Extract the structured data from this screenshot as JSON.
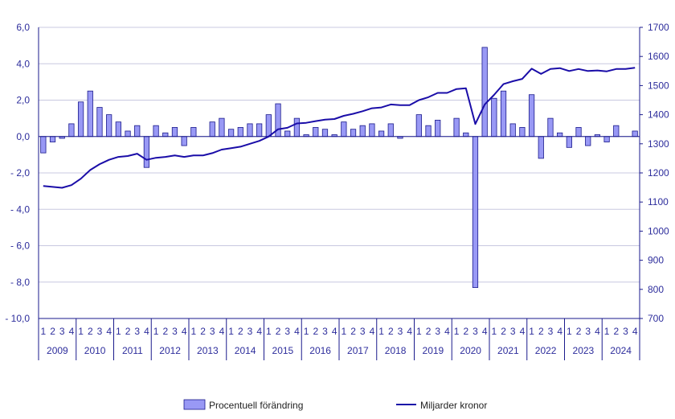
{
  "chart_data": {
    "type": "bar+line",
    "colors": {
      "bar_fill": "#9999f5",
      "bar_stroke": "#1a1a8c",
      "line": "#1a0da8",
      "axis_text": "#2d2d9c",
      "grid": "#c8c8e0",
      "axis_line": "#1a1a8c"
    },
    "left_axis": {
      "ylim": [
        -10,
        6
      ],
      "ticks": [
        6,
        4,
        2,
        0,
        -2,
        -4,
        -6,
        -8,
        -10
      ],
      "tick_labels": [
        "6,0",
        "4,0",
        "2,0",
        "0,0",
        "- 2,0",
        "- 4,0",
        "- 6,0",
        "- 8,0",
        "- 10,0"
      ]
    },
    "right_axis": {
      "ylim": [
        700,
        1700
      ],
      "ticks": [
        1700,
        1600,
        1500,
        1400,
        1300,
        1200,
        1100,
        1000,
        900,
        800,
        700
      ],
      "tick_labels": [
        "1700",
        "1600",
        "1500",
        "1400",
        "1300",
        "1200",
        "1100",
        "1000",
        "900",
        "800",
        "700"
      ]
    },
    "years": [
      "2009",
      "2010",
      "2011",
      "2012",
      "2013",
      "2014",
      "2015",
      "2016",
      "2017",
      "2018",
      "2019",
      "2020",
      "2021",
      "2022",
      "2023",
      "2024"
    ],
    "quarter_labels": [
      "1",
      "2",
      "3",
      "4"
    ],
    "series": [
      {
        "name": "Procentuell förändring",
        "kind": "bar",
        "axis": "left",
        "values": [
          -0.9,
          -0.3,
          -0.1,
          0.7,
          1.9,
          2.5,
          1.6,
          1.2,
          0.8,
          0.3,
          0.6,
          -1.7,
          0.6,
          0.2,
          0.5,
          -0.5,
          0.5,
          0.0,
          0.8,
          1.0,
          0.4,
          0.5,
          0.7,
          0.7,
          1.2,
          1.8,
          0.3,
          1.0,
          0.1,
          0.5,
          0.4,
          0.1,
          0.8,
          0.4,
          0.6,
          0.7,
          0.3,
          0.7,
          -0.1,
          0.0,
          1.2,
          0.6,
          0.9,
          0.0,
          1.0,
          0.2,
          -8.3,
          4.9,
          2.1,
          2.5,
          0.7,
          0.5,
          2.3,
          -1.2,
          1.0,
          0.2,
          -0.6,
          0.5,
          -0.5,
          0.1,
          -0.3,
          0.6,
          0.0,
          0.3
        ]
      },
      {
        "name": "Miljarder kronor",
        "kind": "line",
        "axis": "right",
        "values": [
          1155,
          1152,
          1149,
          1158,
          1180,
          1210,
          1230,
          1245,
          1255,
          1258,
          1266,
          1245,
          1252,
          1255,
          1260,
          1255,
          1260,
          1260,
          1268,
          1280,
          1285,
          1290,
          1300,
          1310,
          1325,
          1350,
          1355,
          1370,
          1372,
          1378,
          1383,
          1385,
          1396,
          1403,
          1412,
          1422,
          1425,
          1435,
          1433,
          1433,
          1450,
          1460,
          1475,
          1475,
          1488,
          1491,
          1368,
          1435,
          1468,
          1505,
          1515,
          1523,
          1558,
          1540,
          1557,
          1560,
          1550,
          1557,
          1550,
          1552,
          1549,
          1557,
          1557,
          1561
        ]
      }
    ],
    "legend": {
      "placement": "bottom",
      "items": [
        "Procentuell förändring",
        "Miljarder kronor"
      ]
    },
    "grid": true
  }
}
